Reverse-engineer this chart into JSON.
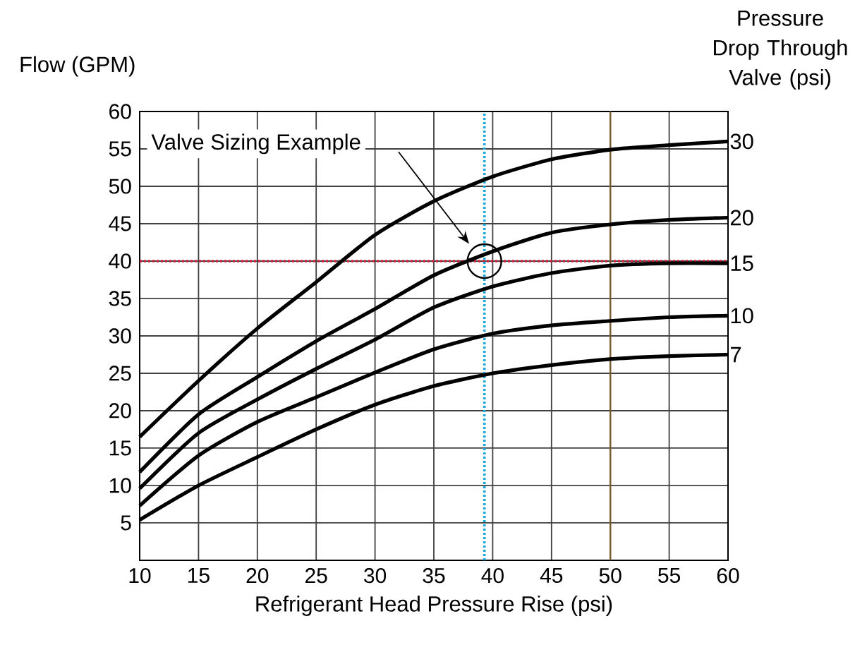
{
  "chart_data": {
    "type": "line",
    "xlabel": "Refrigerant Head Pressure Rise (psi)",
    "ylabel": "Flow (GPM)",
    "legend_title": "Pressure Drop Through Valve (psi)",
    "x": [
      10,
      15,
      20,
      25,
      30,
      35,
      40,
      45,
      50,
      55,
      60
    ],
    "series": [
      {
        "name": "30",
        "color": "#000000",
        "values": [
          16.5,
          24.0,
          31.0,
          37.2,
          43.5,
          48.0,
          51.3,
          53.6,
          54.9,
          55.5,
          56.0
        ]
      },
      {
        "name": "20",
        "color": "#000000",
        "values": [
          11.8,
          19.5,
          24.5,
          29.3,
          33.6,
          38.1,
          41.3,
          43.8,
          44.9,
          45.5,
          45.8
        ]
      },
      {
        "name": "15",
        "color": "#000000",
        "values": [
          9.6,
          17.0,
          21.5,
          25.6,
          29.5,
          33.8,
          36.6,
          38.4,
          39.4,
          39.7,
          39.7
        ]
      },
      {
        "name": "10",
        "color": "#000000",
        "values": [
          7.3,
          14.0,
          18.5,
          21.8,
          25.1,
          28.2,
          30.3,
          31.4,
          32.0,
          32.5,
          32.7
        ]
      },
      {
        "name": "7",
        "color": "#000000",
        "values": [
          5.4,
          10.0,
          13.8,
          17.5,
          20.8,
          23.3,
          25.0,
          26.1,
          26.9,
          27.3,
          27.5
        ]
      },
      {
        "type": "scatter",
        "color": "#000000",
        "x": [
          39.3
        ],
        "values": [
          40
        ]
      }
    ],
    "xlim": [
      10,
      60
    ],
    "ylim": [
      0,
      60
    ],
    "xticks": [
      10,
      15,
      20,
      25,
      30,
      35,
      40,
      45,
      50,
      55,
      60
    ],
    "yticks": [
      5,
      10,
      15,
      20,
      25,
      30,
      35,
      40,
      45,
      50,
      55,
      60
    ],
    "grid": true,
    "marker": "none",
    "line_style": "solid",
    "ref_lines": [
      {
        "axis": "y",
        "value": 40,
        "color": "#d0203a",
        "line_style": "dotted"
      },
      {
        "axis": "x",
        "value": 39.3,
        "color": "#1aa7e0",
        "line_style": "dotted"
      },
      {
        "axis": "x",
        "value": 50,
        "color": "#7a5a2e",
        "line_style": "solid"
      }
    ],
    "annotations": [
      "Valve Sizing Example"
    ]
  }
}
